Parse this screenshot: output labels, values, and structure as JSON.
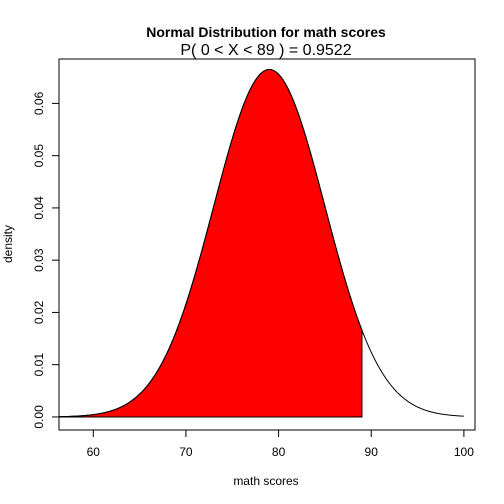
{
  "chart_data": {
    "type": "area",
    "title": "Normal Distribution for math scores",
    "subtitle": "P( 0 < X < 89 ) = 0.9522",
    "xlabel": "math scores",
    "ylabel": "density",
    "xlim": [
      56.3,
      101.2
    ],
    "ylim": [
      -0.0025,
      0.0685
    ],
    "x_ticks": [
      60,
      70,
      80,
      90,
      100
    ],
    "x_tick_labels": [
      "60",
      "70",
      "80",
      "90",
      "100"
    ],
    "y_ticks": [
      0.0,
      0.01,
      0.02,
      0.03,
      0.04,
      0.05,
      0.06
    ],
    "y_tick_labels": [
      "0.00",
      "0.01",
      "0.02",
      "0.03",
      "0.04",
      "0.05",
      "0.06"
    ],
    "distribution": {
      "mean": 79,
      "sd": 6
    },
    "curve_range": [
      56.3,
      100
    ],
    "shaded_range": [
      56.3,
      89
    ],
    "probability": 0.9522,
    "fill_color": "#ff0000",
    "line_color": "#000000",
    "grid": false
  }
}
